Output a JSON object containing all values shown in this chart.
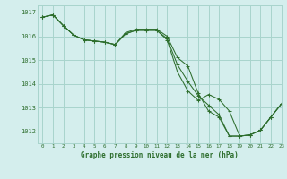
{
  "title": "Graphe pression niveau de la mer (hPa)",
  "background_color": "#d4eeed",
  "grid_color": "#a8d4cc",
  "line_color": "#2d6e2d",
  "marker_color": "#2d6e2d",
  "xlim": [
    -0.5,
    23
  ],
  "ylim": [
    1011.5,
    1017.3
  ],
  "yticks": [
    1012,
    1013,
    1014,
    1015,
    1016,
    1017
  ],
  "xticks": [
    0,
    1,
    2,
    3,
    4,
    5,
    6,
    7,
    8,
    9,
    10,
    11,
    12,
    13,
    14,
    15,
    16,
    17,
    18,
    19,
    20,
    21,
    22,
    23
  ],
  "series": [
    [
      1016.8,
      1016.9,
      1016.45,
      1016.05,
      1015.85,
      1015.8,
      1015.75,
      1015.65,
      1016.1,
      1016.25,
      1016.25,
      1016.25,
      1015.9,
      1014.8,
      1014.1,
      1013.5,
      1013.1,
      1012.7,
      1011.8,
      1011.8,
      1011.85,
      1012.05,
      1012.6,
      1013.15
    ],
    [
      1016.8,
      1016.9,
      1016.45,
      1016.05,
      1015.85,
      1015.8,
      1015.75,
      1015.65,
      1016.15,
      1016.3,
      1016.3,
      1016.3,
      1016.0,
      1015.1,
      1014.75,
      1013.6,
      1012.85,
      1012.6,
      1011.8,
      1011.8,
      1011.85,
      1012.05,
      1012.6,
      1013.15
    ],
    [
      1016.8,
      1016.9,
      1016.45,
      1016.05,
      1015.85,
      1015.8,
      1015.75,
      1015.65,
      1016.1,
      1016.25,
      1016.25,
      1016.25,
      1015.85,
      1014.5,
      1013.7,
      1013.3,
      1013.55,
      1013.35,
      1012.85,
      1011.8,
      1011.85,
      1012.05,
      1012.6,
      1013.15
    ]
  ]
}
